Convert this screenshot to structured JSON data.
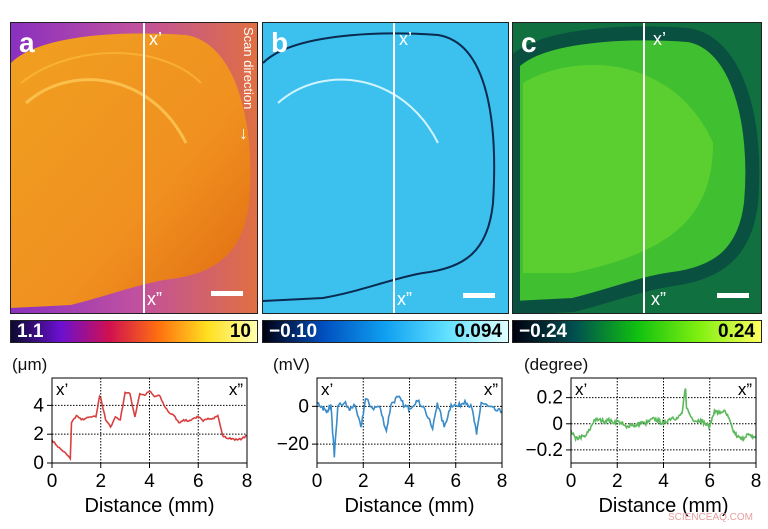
{
  "panels": [
    {
      "label": "a",
      "x1": "x’",
      "x2": "x”",
      "note": "Scan direction",
      "colorbar": {
        "min": "1.1",
        "max": "10",
        "colors": [
          "#0a0a30",
          "#6a10d0",
          "#d01050",
          "#ff7010",
          "#ffe020",
          "#ffffb0"
        ]
      }
    },
    {
      "label": "b",
      "x1": "x’",
      "x2": "x”",
      "colorbar": {
        "min": "−0.10",
        "max": "0.094",
        "colors": [
          "#000010",
          "#0050c0",
          "#10a0f0",
          "#60e0ff",
          "#e0ffff"
        ]
      }
    },
    {
      "label": "c",
      "x1": "x’",
      "x2": "x”",
      "colorbar": {
        "min": "−0.24",
        "max": "0.24",
        "colors": [
          "#000010",
          "#005050",
          "#10c010",
          "#80f010",
          "#ffff60"
        ]
      }
    }
  ],
  "chart_data": [
    {
      "type": "line",
      "ylabel": "(μm)",
      "xlabel": "Distance (mm)",
      "xlim": [
        0,
        8
      ],
      "ylim": [
        0,
        5.9
      ],
      "xticks": [
        0,
        2,
        4,
        6,
        8
      ],
      "yticks": [
        0,
        2,
        4
      ],
      "grid": true,
      "color": "#d84040",
      "corner_labels": [
        "x’",
        "x”"
      ],
      "x": [
        0,
        0.2,
        0.4,
        0.6,
        0.75,
        0.8,
        1.0,
        1.2,
        1.4,
        1.6,
        1.8,
        1.95,
        2.0,
        2.2,
        2.4,
        2.6,
        2.8,
        3.0,
        3.2,
        3.4,
        3.6,
        3.8,
        4.0,
        4.2,
        4.4,
        4.6,
        4.8,
        5.0,
        5.2,
        5.4,
        5.6,
        5.8,
        6.0,
        6.2,
        6.4,
        6.6,
        6.8,
        7.0,
        7.2,
        7.4,
        7.6,
        7.8,
        8.0
      ],
      "y": [
        1.6,
        1.2,
        0.9,
        0.6,
        0.3,
        2.8,
        3.3,
        3.0,
        3.1,
        3.2,
        3.2,
        4.6,
        4.5,
        3.0,
        2.5,
        3.2,
        3.0,
        4.9,
        4.8,
        3.2,
        4.8,
        4.7,
        5.0,
        4.6,
        4.7,
        4.0,
        3.5,
        3.3,
        2.8,
        3.0,
        2.9,
        3.1,
        3.2,
        2.9,
        3.1,
        3.1,
        3.3,
        1.9,
        1.7,
        1.7,
        1.6,
        1.7,
        1.9
      ]
    },
    {
      "type": "line",
      "ylabel": "(mV)",
      "xlabel": "Distance (mm)",
      "xlim": [
        0,
        8
      ],
      "ylim": [
        -30,
        15
      ],
      "xticks": [
        0,
        2,
        4,
        6,
        8
      ],
      "yticks": [
        -20,
        0
      ],
      "grid": true,
      "color": "#3a8cc8",
      "corner_labels": [
        "x’",
        "x”"
      ],
      "x": [
        0,
        0.2,
        0.4,
        0.6,
        0.75,
        0.9,
        1.2,
        1.4,
        1.6,
        1.9,
        2.1,
        2.4,
        2.7,
        3.0,
        3.2,
        3.5,
        3.8,
        4.0,
        4.3,
        4.6,
        5.0,
        5.2,
        5.5,
        5.8,
        6.1,
        6.4,
        6.7,
        6.9,
        7.1,
        7.4,
        7.7,
        8.0
      ],
      "y": [
        2,
        0,
        -3,
        1,
        -27,
        0,
        2,
        -2,
        1,
        -11,
        4,
        -1,
        0,
        -13,
        1,
        5,
        0,
        -1,
        3,
        0,
        -12,
        2,
        -11,
        1,
        0,
        3,
        -1,
        -15,
        2,
        0,
        -2,
        -3
      ]
    },
    {
      "type": "line",
      "ylabel": "(degree)",
      "xlabel": "Distance (mm)",
      "xlim": [
        0,
        8
      ],
      "ylim": [
        -0.3,
        0.35
      ],
      "xticks": [
        0,
        2,
        4,
        6,
        8
      ],
      "yticks": [
        -0.2,
        0,
        0.2
      ],
      "grid": true,
      "color": "#5cb85c",
      "corner_labels": [
        "x’",
        "x”"
      ],
      "x": [
        0,
        0.2,
        0.4,
        0.6,
        0.8,
        1.0,
        1.2,
        1.4,
        1.6,
        1.8,
        2.0,
        2.2,
        2.4,
        2.6,
        2.8,
        3.0,
        3.2,
        3.4,
        3.6,
        3.8,
        4.0,
        4.2,
        4.4,
        4.6,
        4.8,
        4.95,
        5.0,
        5.2,
        5.4,
        5.6,
        5.8,
        6.0,
        6.2,
        6.4,
        6.6,
        6.8,
        7.0,
        7.2,
        7.4,
        7.6,
        7.8,
        8.0
      ],
      "y": [
        -0.05,
        -0.12,
        -0.1,
        -0.1,
        -0.05,
        0.03,
        0.03,
        0.02,
        0.03,
        0.01,
        0.02,
        0.0,
        -0.03,
        0.0,
        -0.02,
        0.01,
        0.0,
        0.02,
        0.04,
        0.02,
        0.0,
        0.03,
        0.05,
        0.04,
        0.08,
        0.27,
        0.12,
        0.05,
        0.02,
        0.03,
        0.0,
        -0.02,
        0.1,
        0.08,
        0.1,
        0.05,
        -0.05,
        -0.1,
        -0.12,
        -0.08,
        -0.1,
        -0.1
      ]
    }
  ],
  "watermark": "SCIENCEAQ.COM"
}
